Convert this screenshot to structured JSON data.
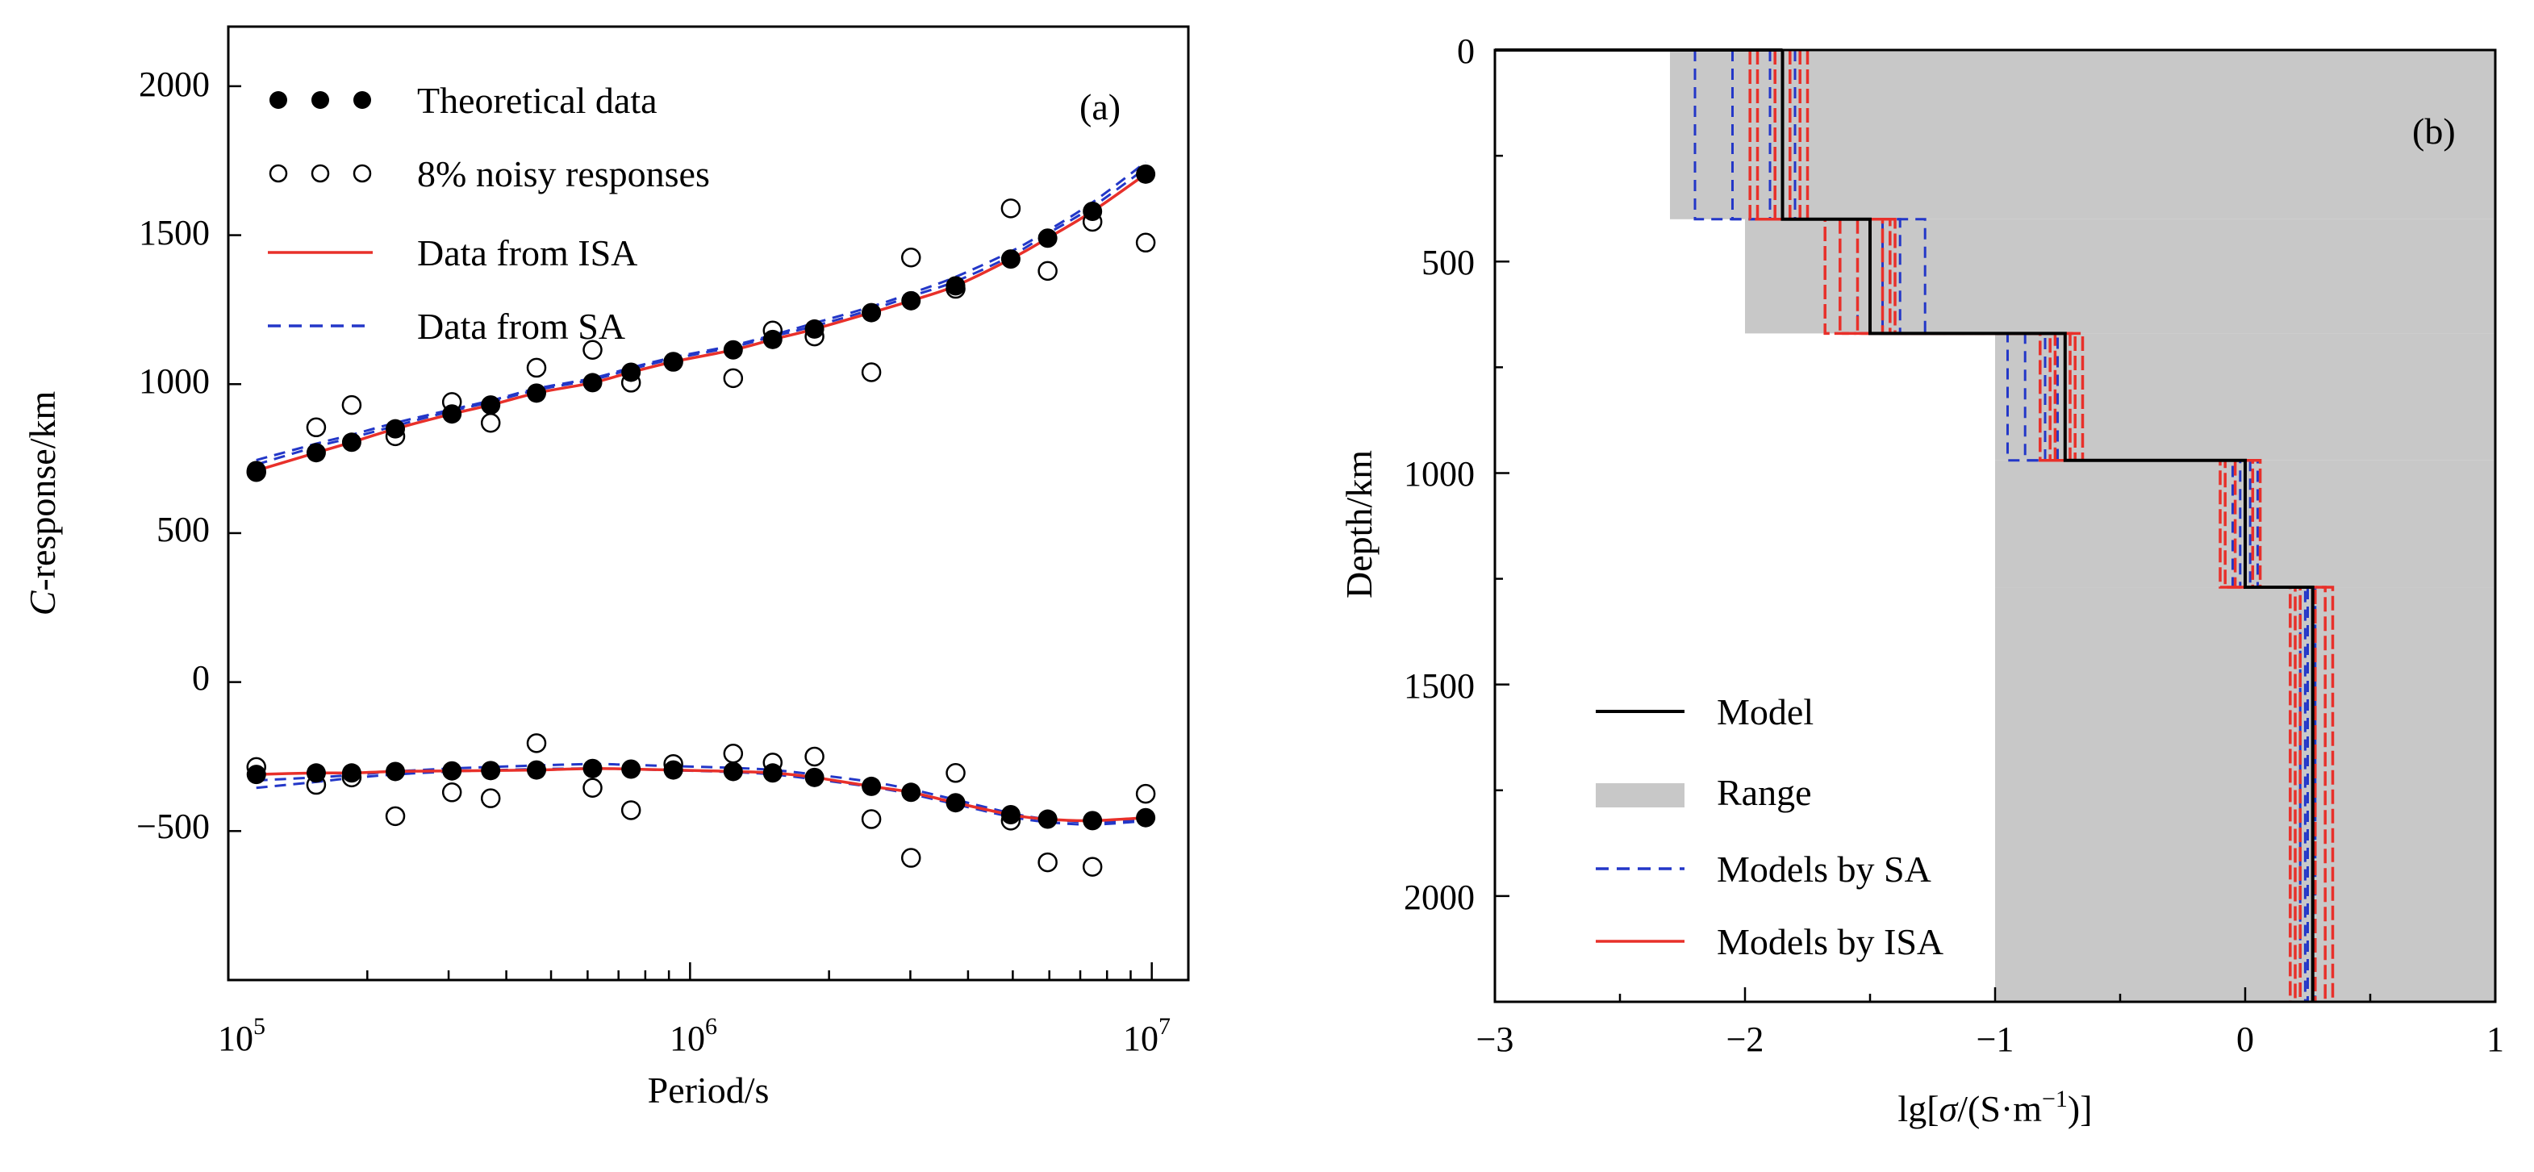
{
  "chart_data": [
    {
      "panel": "(a)",
      "type": "line",
      "xscale": "log",
      "xlim": [
        100000,
        12000000
      ],
      "ylim": [
        -1000,
        2200
      ],
      "xlabel_prefix": "",
      "xlabel": "Period/s",
      "ylabel_italic": "C",
      "ylabel_rest": "-response/km",
      "x_tick_labels": [
        {
          "base": "10",
          "exp": "5",
          "value": 100000
        },
        {
          "base": "10",
          "exp": "6",
          "value": 1000000
        },
        {
          "base": "10",
          "exp": "7",
          "value": 10000000
        }
      ],
      "y_ticks": [
        -500,
        0,
        500,
        1000,
        1500,
        2000
      ],
      "y_tick_labels": [
        "−500",
        "0",
        "500",
        "1000",
        "1500",
        "2000"
      ],
      "legend": [
        {
          "label": "Theoretical data",
          "style": "filled-dots"
        },
        {
          "label": "8% noisy responses",
          "style": "open-circles"
        },
        {
          "label": "Data from ISA",
          "style": "red-solid"
        },
        {
          "label": "Data from SA",
          "style": "blue-dashed"
        }
      ],
      "periods": [
        115000,
        155000,
        185000,
        230000,
        305000,
        370000,
        465000,
        615000,
        745000,
        920000,
        1240000,
        1510000,
        1860000,
        2470000,
        3010000,
        3760000,
        4950000,
        5950000,
        7440000,
        9700000
      ],
      "series": [
        {
          "name": "Theoretical data (real)",
          "values": [
            710,
            770,
            805,
            850,
            900,
            930,
            970,
            1005,
            1040,
            1075,
            1115,
            1150,
            1185,
            1240,
            1280,
            1330,
            1420,
            1490,
            1580,
            1705
          ]
        },
        {
          "name": "Theoretical data (imag)",
          "values": [
            -310,
            -305,
            -305,
            -300,
            -298,
            -297,
            -295,
            -290,
            -292,
            -295,
            -300,
            -305,
            -320,
            -350,
            -370,
            -405,
            -445,
            -460,
            -465,
            -455
          ]
        },
        {
          "name": "8% noisy responses (real)",
          "values": [
            705,
            855,
            930,
            825,
            940,
            870,
            1055,
            1115,
            1005,
            1075,
            1020,
            1180,
            1160,
            1040,
            1425,
            1320,
            1590,
            1380,
            1545,
            1475
          ]
        },
        {
          "name": "8% noisy responses (imag)",
          "values": [
            -285,
            -345,
            -320,
            -450,
            -370,
            -390,
            -205,
            -355,
            -430,
            -275,
            -240,
            -270,
            -250,
            -460,
            -590,
            -305,
            -465,
            -605,
            -620,
            -375
          ]
        },
        {
          "name": "Data from ISA (real)",
          "values": [
            710,
            770,
            805,
            850,
            900,
            930,
            970,
            1005,
            1040,
            1075,
            1115,
            1150,
            1185,
            1240,
            1280,
            1330,
            1420,
            1490,
            1580,
            1705
          ]
        },
        {
          "name": "Data from ISA (imag)",
          "values": [
            -310,
            -305,
            -305,
            -300,
            -298,
            -297,
            -295,
            -290,
            -292,
            -295,
            -300,
            -305,
            -320,
            -350,
            -370,
            -405,
            -445,
            -460,
            -465,
            -455
          ]
        },
        {
          "name": "Data from SA (real 1)",
          "values": [
            745,
            800,
            830,
            870,
            915,
            945,
            985,
            1020,
            1055,
            1090,
            1130,
            1165,
            1205,
            1260,
            1305,
            1360,
            1445,
            1515,
            1610,
            1745
          ]
        },
        {
          "name": "Data from SA (real 2)",
          "values": [
            730,
            790,
            820,
            860,
            910,
            940,
            980,
            1015,
            1050,
            1085,
            1125,
            1160,
            1195,
            1250,
            1295,
            1345,
            1430,
            1505,
            1595,
            1725
          ]
        },
        {
          "name": "Data from SA (imag 1)",
          "values": [
            -330,
            -320,
            -312,
            -300,
            -290,
            -285,
            -280,
            -275,
            -278,
            -282,
            -288,
            -295,
            -310,
            -335,
            -360,
            -395,
            -440,
            -460,
            -470,
            -460
          ]
        },
        {
          "name": "Data from SA (imag 2)",
          "values": [
            -355,
            -335,
            -322,
            -310,
            -300,
            -296,
            -292,
            -290,
            -292,
            -296,
            -302,
            -310,
            -326,
            -352,
            -376,
            -410,
            -452,
            -470,
            -478,
            -466
          ]
        }
      ]
    },
    {
      "panel": "(b)",
      "type": "line",
      "xlim": [
        -3,
        1
      ],
      "ylim": [
        2250,
        0
      ],
      "xlabel_prefix": "lg[",
      "xlabel_sigma": "σ",
      "xlabel_rest": "/(S·m",
      "xlabel_sup": "−1",
      "xlabel_end": ")]",
      "ylabel": "Depth/km",
      "x_ticks": [
        -3,
        -2,
        -1,
        0,
        1
      ],
      "x_tick_labels": [
        "−3",
        "−2",
        "−1",
        "0",
        "1"
      ],
      "y_ticks": [
        0,
        500,
        1000,
        1500,
        2000
      ],
      "y_tick_labels": [
        "0",
        "500",
        "1000",
        "1500",
        "2000"
      ],
      "legend": [
        {
          "label": "Model",
          "style": "black-solid"
        },
        {
          "label": "Range",
          "style": "gray-band"
        },
        {
          "label": "Models by SA",
          "style": "blue-dashed"
        },
        {
          "label": "Models by ISA",
          "style": "red-solid"
        }
      ],
      "layers_km": [
        [
          0,
          400
        ],
        [
          400,
          670
        ],
        [
          670,
          970
        ],
        [
          970,
          1270
        ],
        [
          1270,
          2250
        ]
      ],
      "model_lg_sigma": [
        -1.85,
        -1.5,
        -0.72,
        0.0,
        0.27
      ],
      "range_lower_lg_sigma": [
        -2.3,
        -2.0,
        -1.0,
        -1.0,
        -1.0
      ],
      "range_upper_lg_sigma": [
        1,
        1,
        1,
        1,
        1
      ],
      "models_by_SA_lg_sigma": [
        [
          -2.2,
          -1.28,
          -0.95,
          0.05,
          0.22
        ],
        [
          -2.05,
          -1.38,
          -0.88,
          0.02,
          0.25
        ],
        [
          -1.8,
          -1.45,
          -0.8,
          -0.05,
          0.28
        ],
        [
          -1.9,
          -1.55,
          -0.75,
          -0.02,
          0.24
        ]
      ],
      "models_by_ISA_lg_sigma": [
        [
          -1.98,
          -1.68,
          -0.82,
          -0.1,
          0.18
        ],
        [
          -1.95,
          -1.62,
          -0.78,
          -0.08,
          0.2
        ],
        [
          -1.78,
          -1.42,
          -0.68,
          0.03,
          0.22
        ],
        [
          -1.75,
          -1.4,
          -0.65,
          0.06,
          0.32
        ],
        [
          -1.88,
          -1.55,
          -0.76,
          -0.04,
          0.35
        ],
        [
          -1.82,
          -1.45,
          -0.7,
          0.0,
          0.28
        ]
      ]
    }
  ]
}
